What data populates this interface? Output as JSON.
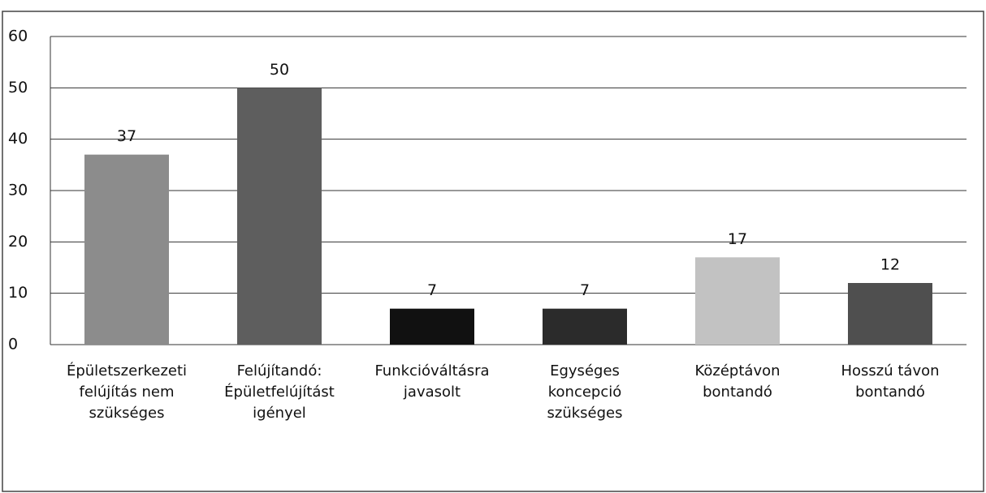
{
  "chart_data": {
    "type": "bar",
    "categories": [
      "Épületszerkezeti felújítás nem szükséges",
      "Felújítandó: Épületfelújítást igényel",
      "Funkcióváltásra javasolt",
      "Egységes koncepció szükséges",
      "Középtávon bontandó",
      "Hosszú távon bontandó"
    ],
    "values": [
      37,
      50,
      7,
      7,
      17,
      12
    ],
    "colors": [
      "#8c8c8c",
      "#5e5e5e",
      "#111111",
      "#2b2b2b",
      "#c2c2c2",
      "#4f4f4f"
    ],
    "ylim": [
      0,
      60
    ],
    "yticks": [
      0,
      10,
      20,
      30,
      40,
      50,
      60
    ],
    "grid": true
  }
}
